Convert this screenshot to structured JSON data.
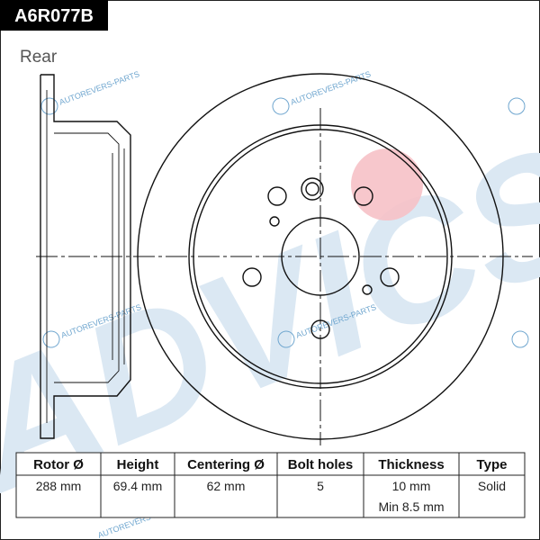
{
  "header": {
    "code": "A6R077B",
    "position": "Rear"
  },
  "watermark": "AUTOREVERS-PARTS",
  "logo": "ADVICS",
  "table": {
    "columns": [
      "Rotor Ø",
      "Height",
      "Centering Ø",
      "Bolt holes",
      "Thickness",
      "Type"
    ],
    "rows": [
      [
        [
          "288 mm"
        ],
        [
          "69.4 mm"
        ],
        [
          "62 mm"
        ],
        [
          "5"
        ],
        [
          "10 mm",
          "Min 8.5 mm"
        ],
        [
          "Solid"
        ]
      ]
    ]
  }
}
